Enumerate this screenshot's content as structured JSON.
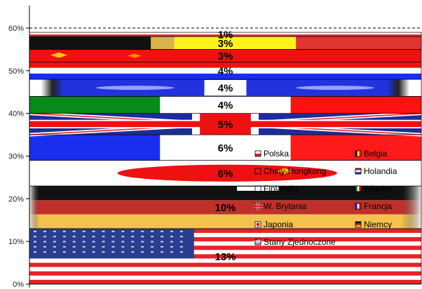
{
  "chart_data": {
    "type": "bar",
    "stacked": true,
    "series_visual": "flag",
    "ylim": [
      0,
      60
    ],
    "y_ticks": [
      0,
      10,
      20,
      30,
      40,
      50,
      60
    ],
    "y_tick_labels": [
      "0%",
      "10%",
      "20%",
      "30%",
      "40%",
      "50%",
      "60%"
    ],
    "threshold_line": 60,
    "grid": false,
    "legend_position": "inside-right",
    "series": [
      {
        "name": "Stany Zjednoczone",
        "value": 13,
        "label": "13%",
        "flag": "usa"
      },
      {
        "name": "Niemcy",
        "value": 10,
        "label": "10%",
        "flag": "germany"
      },
      {
        "name": "Japonia",
        "value": 6,
        "label": "6%",
        "flag": "japan"
      },
      {
        "name": "Francja",
        "value": 6,
        "label": "6%",
        "flag": "france"
      },
      {
        "name": "W. Brytania",
        "value": 5,
        "label": "5%",
        "flag": "uk"
      },
      {
        "name": "Włochy",
        "value": 4,
        "label": "4%",
        "flag": "italy"
      },
      {
        "name": "Finlandia",
        "value": 4,
        "label": "4%",
        "flag": "finland"
      },
      {
        "name": "Holandia",
        "value": 4,
        "label": "4%",
        "flag": "netherlands"
      },
      {
        "name": "Chiny-Hongkong",
        "value": 3,
        "label": "3%",
        "flag": "china"
      },
      {
        "name": "Belgia",
        "value": 3,
        "label": "3%",
        "flag": "belgium"
      },
      {
        "name": "Polska",
        "value": 1,
        "label": "1%",
        "flag": "poland"
      }
    ],
    "legend_order": [
      "Polska",
      "Belgia",
      "Chiny-Hongkong",
      "Holandia",
      "Finlandia",
      "Włochy",
      "W. Brytania",
      "Francja",
      "Japonia",
      "Niemcy",
      "Stany Zjednoczone"
    ]
  }
}
